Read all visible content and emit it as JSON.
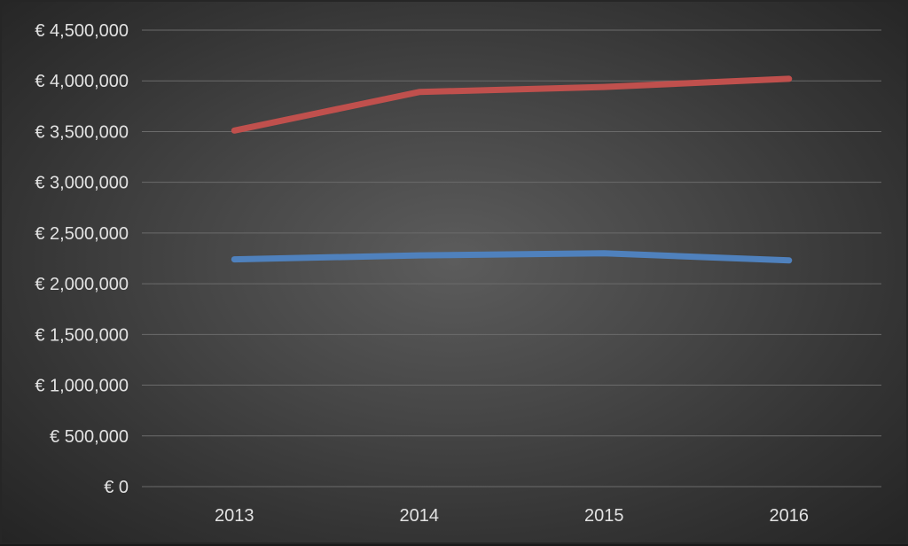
{
  "chart_data": {
    "type": "line",
    "title": "",
    "xlabel": "",
    "ylabel": "",
    "categories": [
      "2013",
      "2014",
      "2015",
      "2016"
    ],
    "ylim": [
      0,
      4500000
    ],
    "yticks": [
      0,
      500000,
      1000000,
      1500000,
      2000000,
      2500000,
      3000000,
      3500000,
      4000000,
      4500000
    ],
    "ytick_labels": [
      "€ 0",
      "€ 500,000",
      "€ 1,000,000",
      "€ 1,500,000",
      "€ 2,000,000",
      "€ 2,500,000",
      "€ 3,000,000",
      "€ 3,500,000",
      "€ 4,000,000",
      "€ 4,500,000"
    ],
    "grid": true,
    "legend": "none",
    "series": [
      {
        "values": [
          3510000,
          3890000,
          3940000,
          4020000
        ],
        "color": "#c0504d"
      },
      {
        "values": [
          2240000,
          2280000,
          2300000,
          2230000
        ],
        "color": "#4f81bd"
      }
    ]
  }
}
